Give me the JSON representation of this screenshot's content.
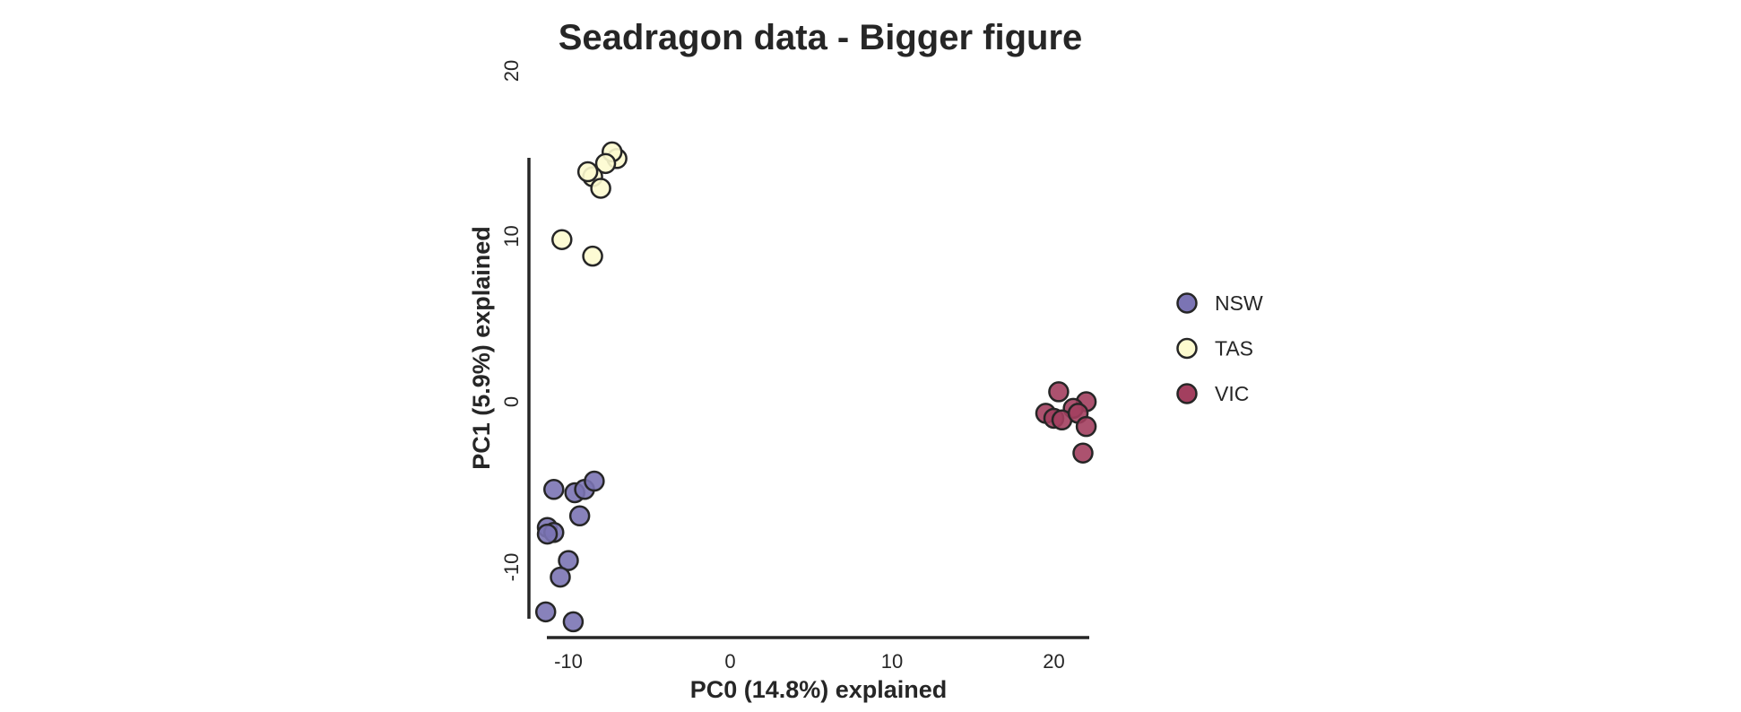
{
  "chart_data": {
    "type": "scatter",
    "title": "Seadragon data - Bigger figure",
    "xlabel": "PC0 (14.8%) explained",
    "ylabel": "PC1 (5.9%) explained",
    "xlim": [
      -12.5,
      24
    ],
    "ylim": [
      -14.5,
      21
    ],
    "x_ticks": [
      -10,
      0,
      10,
      20
    ],
    "x_tick_labels": [
      "-10",
      "0",
      "10",
      "20"
    ],
    "y_ticks": [
      -10,
      0,
      10,
      20
    ],
    "y_tick_labels": [
      "-10",
      "0",
      "10",
      "20"
    ],
    "grid": false,
    "legend_position": "right",
    "series": [
      {
        "name": "NSW",
        "color": "#7b74b4",
        "points": [
          [
            -10.9,
            -5.3
          ],
          [
            -9.6,
            -5.5
          ],
          [
            -9.0,
            -5.3
          ],
          [
            -8.4,
            -4.8
          ],
          [
            -9.3,
            -6.9
          ],
          [
            -11.3,
            -7.6
          ],
          [
            -10.9,
            -7.9
          ],
          [
            -11.3,
            -8.0
          ],
          [
            -10.0,
            -9.6
          ],
          [
            -10.5,
            -10.6
          ],
          [
            -11.4,
            -12.7
          ],
          [
            -9.7,
            -13.3
          ]
        ]
      },
      {
        "name": "TAS",
        "color": "#fdfbcf",
        "points": [
          [
            -7.0,
            14.7
          ],
          [
            -7.3,
            15.1
          ],
          [
            -7.7,
            14.4
          ],
          [
            -8.5,
            13.6
          ],
          [
            -8.8,
            13.9
          ],
          [
            -8.0,
            12.9
          ],
          [
            -10.4,
            9.8
          ],
          [
            -8.5,
            8.8
          ]
        ]
      },
      {
        "name": "VIC",
        "color": "#a33f5f",
        "points": [
          [
            20.3,
            0.6
          ],
          [
            22.0,
            0.0
          ],
          [
            21.2,
            -0.4
          ],
          [
            19.5,
            -0.7
          ],
          [
            20.0,
            -1.0
          ],
          [
            20.5,
            -1.1
          ],
          [
            21.5,
            -0.7
          ],
          [
            22.0,
            -1.5
          ],
          [
            21.8,
            -3.1
          ]
        ]
      }
    ]
  }
}
